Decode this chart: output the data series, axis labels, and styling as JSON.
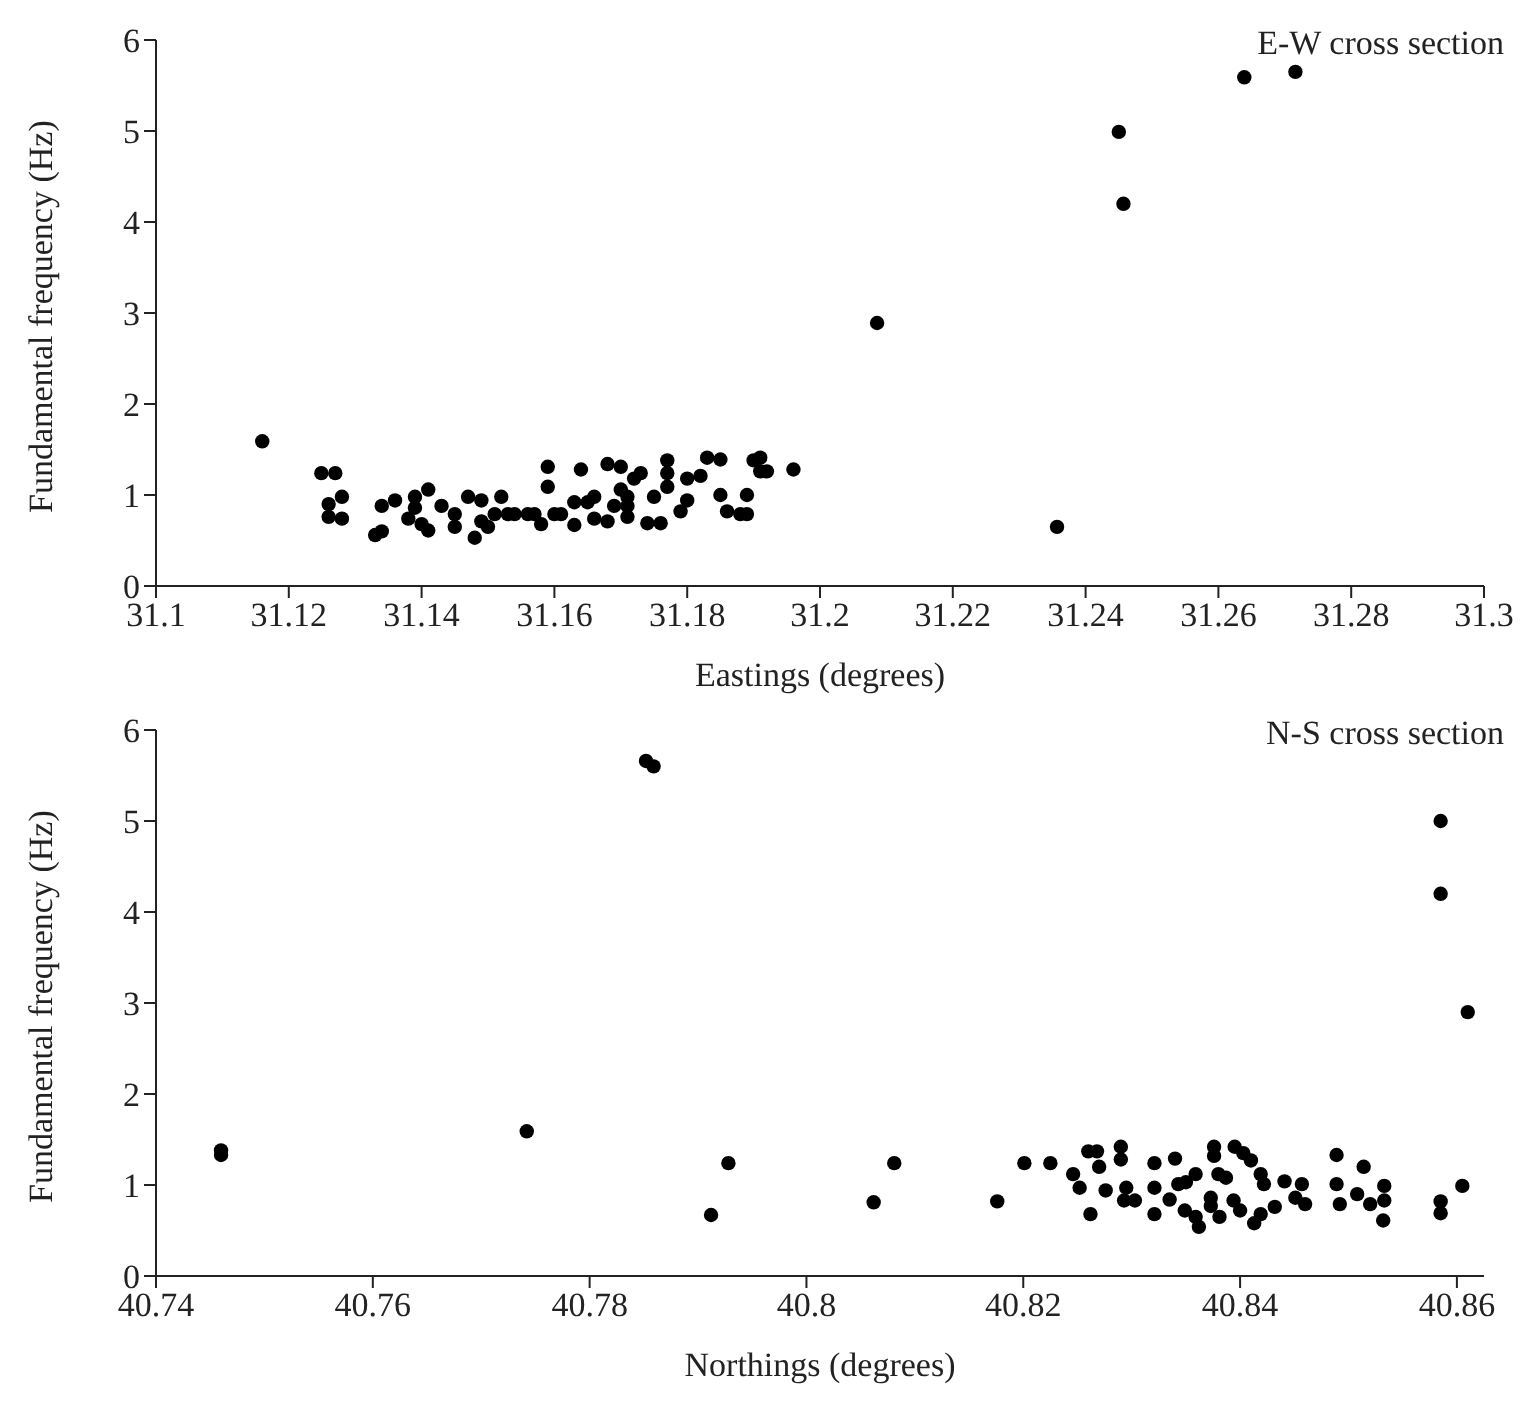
{
  "chart_data": [
    {
      "type": "scatter",
      "annotations": [
        "E-W cross section"
      ],
      "xlabel": "Eastings (degrees)",
      "ylabel": "Fundamental frequency (Hz)",
      "xlim": [
        31.1,
        31.3
      ],
      "xticks": [
        31.1,
        31.12,
        31.14,
        31.16,
        31.18,
        31.2,
        31.22,
        31.24,
        31.26,
        31.28,
        31.3
      ],
      "ylim": [
        0,
        6
      ],
      "yticks": [
        0,
        1,
        2,
        3,
        4,
        5,
        6
      ],
      "marker": "circle",
      "grid": false,
      "legend": false,
      "series": [
        {
          "color": "#000000",
          "x": [
            31.116,
            31.1249,
            31.127,
            31.126,
            31.126,
            31.128,
            31.128,
            31.133,
            31.134,
            31.134,
            31.136,
            31.138,
            31.139,
            31.139,
            31.14,
            31.141,
            31.141,
            31.143,
            31.145,
            31.145,
            31.147,
            31.148,
            31.149,
            31.149,
            31.15,
            31.151,
            31.152,
            31.153,
            31.154,
            31.156,
            31.157,
            31.158,
            31.159,
            31.159,
            31.16,
            31.161,
            31.163,
            31.163,
            31.164,
            31.165,
            31.166,
            31.166,
            31.168,
            31.168,
            31.169,
            31.17,
            31.17,
            31.171,
            31.171,
            31.171,
            31.172,
            31.173,
            31.174,
            31.175,
            31.176,
            31.177,
            31.177,
            31.177,
            31.179,
            31.18,
            31.18,
            31.182,
            31.183,
            31.185,
            31.185,
            31.186,
            31.188,
            31.189,
            31.189,
            31.19,
            31.191,
            31.191,
            31.192,
            31.196,
            31.2086,
            31.2357,
            31.245,
            31.2457,
            31.2639,
            31.2716
          ],
          "values": [
            1.59,
            1.24,
            1.24,
            0.9,
            0.76,
            0.98,
            0.74,
            0.56,
            0.6,
            0.88,
            0.94,
            0.74,
            0.98,
            0.86,
            0.68,
            0.61,
            1.06,
            0.88,
            0.79,
            0.65,
            0.98,
            0.53,
            0.71,
            0.94,
            0.65,
            0.79,
            0.98,
            0.79,
            0.79,
            0.79,
            0.79,
            0.68,
            1.09,
            1.31,
            0.79,
            0.79,
            0.92,
            0.67,
            1.28,
            0.92,
            0.98,
            0.74,
            1.34,
            0.71,
            0.88,
            1.31,
            1.06,
            0.88,
            0.76,
            0.98,
            1.18,
            1.24,
            0.69,
            0.98,
            0.69,
            1.24,
            1.38,
            1.09,
            0.82,
            0.94,
            1.18,
            1.21,
            1.41,
            1.39,
            1.0,
            0.82,
            0.79,
            0.79,
            1.0,
            1.38,
            1.41,
            1.26,
            1.26,
            1.28,
            2.89,
            0.65,
            4.99,
            4.2,
            5.59,
            5.65
          ]
        }
      ]
    },
    {
      "type": "scatter",
      "annotations": [
        "N-S cross section"
      ],
      "xlabel": "Northings (degrees)",
      "ylabel": "Fundamental frequency (Hz)",
      "xlim": [
        40.74,
        40.8625
      ],
      "xticks": [
        40.74,
        40.76,
        40.78,
        40.8,
        40.82,
        40.84,
        40.86
      ],
      "ylim": [
        0,
        6
      ],
      "yticks": [
        0,
        1,
        2,
        3,
        4,
        5,
        6
      ],
      "marker": "circle",
      "grid": false,
      "legend": false,
      "series": [
        {
          "color": "#000000",
          "x": [
            40.746,
            40.746,
            40.7742,
            40.7852,
            40.7859,
            40.7912,
            40.7928,
            40.8062,
            40.8081,
            40.8176,
            40.8201,
            40.8225,
            40.8246,
            40.8252,
            40.826,
            40.8268,
            40.827,
            40.8262,
            40.8276,
            40.829,
            40.829,
            40.8295,
            40.8293,
            40.8303,
            40.8321,
            40.8321,
            40.8321,
            40.8335,
            40.834,
            40.8343,
            40.835,
            40.8359,
            40.8349,
            40.8359,
            40.8362,
            40.8376,
            40.8376,
            40.838,
            40.8373,
            40.8373,
            40.8381,
            40.8387,
            40.8394,
            40.8395,
            40.8403,
            40.841,
            40.84,
            40.8413,
            40.8419,
            40.8419,
            40.8422,
            40.8432,
            40.8441,
            40.8451,
            40.8457,
            40.846,
            40.8489,
            40.8489,
            40.8492,
            40.8508,
            40.8514,
            40.852,
            40.8533,
            40.8533,
            40.8532,
            40.8585,
            40.8585,
            40.8585,
            40.8585,
            40.8605,
            40.861
          ],
          "values": [
            1.38,
            1.33,
            1.59,
            5.66,
            5.6,
            0.67,
            1.24,
            0.81,
            1.24,
            0.82,
            1.24,
            1.24,
            1.12,
            0.97,
            1.37,
            1.37,
            1.2,
            0.68,
            0.94,
            1.42,
            1.28,
            0.97,
            0.83,
            0.83,
            1.24,
            0.97,
            0.68,
            0.84,
            1.29,
            1.01,
            1.03,
            1.12,
            0.72,
            0.65,
            0.54,
            1.42,
            1.32,
            1.12,
            0.86,
            0.77,
            0.65,
            1.08,
            0.83,
            1.42,
            1.35,
            1.27,
            0.72,
            0.58,
            0.68,
            1.12,
            1.01,
            0.76,
            1.04,
            0.86,
            1.01,
            0.79,
            1.33,
            1.01,
            0.79,
            0.9,
            1.2,
            0.79,
            0.99,
            0.83,
            0.61,
            5.0,
            4.2,
            0.69,
            0.82,
            0.99,
            2.9
          ]
        }
      ]
    }
  ]
}
